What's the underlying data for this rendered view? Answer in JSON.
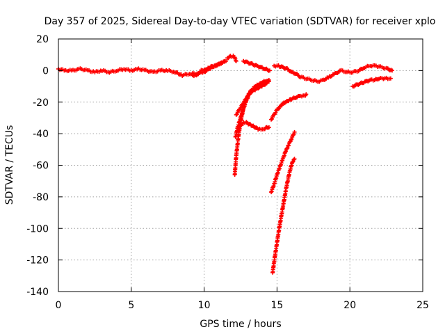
{
  "chart_data": {
    "type": "scatter",
    "title": "Day 357 of 2025, Sidereal Day-to-day VTEC variation (SDTVAR) for receiver xplo",
    "xlabel": "GPS time / hours",
    "ylabel": "SDTVAR / TECUs",
    "xlim": [
      0,
      25
    ],
    "ylim": [
      -140,
      20
    ],
    "xticks": [
      0,
      5,
      10,
      15,
      20,
      25
    ],
    "yticks": [
      -140,
      -120,
      -100,
      -80,
      -60,
      -40,
      -20,
      0,
      20
    ],
    "grid": true,
    "marker": "plus",
    "color": "#ff0000",
    "series": [
      {
        "x": [
          0.0,
          0.5,
          1.0,
          1.5,
          2.0,
          2.5,
          3.0,
          3.5,
          4.0,
          4.5,
          5.0,
          5.5,
          6.0,
          6.5,
          7.0,
          7.5,
          8.0,
          8.5,
          9.0,
          9.5,
          10.0,
          10.5,
          11.0,
          11.5
        ],
        "y": [
          1,
          0,
          0,
          1,
          0,
          -1,
          0,
          -1,
          0,
          1,
          0,
          1,
          0,
          -1,
          0,
          0,
          -1,
          -3,
          -2,
          -2,
          -1,
          2,
          4,
          6
        ]
      },
      {
        "x": [
          9.2,
          9.4,
          9.6,
          9.8,
          10.0,
          10.2,
          10.4,
          10.6,
          10.8,
          11.0,
          11.2,
          11.4
        ],
        "y": [
          -3,
          -3,
          -2,
          0,
          0,
          1,
          2,
          3,
          3,
          4,
          5,
          6
        ]
      },
      {
        "x": [
          11.6,
          11.8,
          12.0,
          12.1,
          12.2
        ],
        "y": [
          8,
          9,
          9,
          8,
          6
        ]
      },
      {
        "x": [
          12.7,
          13.0,
          13.3,
          13.6,
          13.9,
          14.2,
          14.5
        ],
        "y": [
          6,
          5,
          4,
          3,
          2,
          1,
          0
        ]
      },
      {
        "x": [
          14.8,
          15.1,
          15.4,
          15.7,
          16.0,
          16.3,
          16.6,
          17.0,
          17.4,
          17.8,
          18.2,
          18.6,
          19.0,
          19.4,
          19.8,
          20.2,
          20.6,
          21.0,
          21.4,
          21.8,
          22.2,
          22.6,
          22.9
        ],
        "y": [
          3,
          3,
          2,
          1,
          -1,
          -2,
          -4,
          -5,
          -6,
          -7,
          -6,
          -4,
          -2,
          0,
          -1,
          -1,
          0,
          2,
          3,
          3,
          2,
          1,
          0
        ]
      },
      {
        "x": [
          20.2,
          20.5,
          20.8,
          21.1,
          21.4,
          21.7,
          22.0,
          22.3,
          22.6,
          22.8
        ],
        "y": [
          -10,
          -9,
          -8,
          -7,
          -6,
          -6,
          -5,
          -5,
          -5,
          -5
        ]
      },
      {
        "x": [
          12.1,
          12.2,
          12.35,
          12.5,
          12.7,
          12.9,
          13.1,
          13.3,
          13.5,
          13.7,
          13.9,
          14.1,
          14.3,
          14.45
        ],
        "y": [
          -66,
          -54,
          -42,
          -32,
          -24,
          -18,
          -14,
          -12,
          -10,
          -9,
          -8,
          -7,
          -7,
          -6
        ]
      },
      {
        "x": [
          12.15,
          12.3,
          12.5,
          12.7,
          12.9,
          13.1,
          13.3,
          13.5,
          13.7,
          13.9,
          14.1,
          14.3
        ],
        "y": [
          -42,
          -36,
          -30,
          -24,
          -19,
          -15,
          -13,
          -12,
          -11,
          -10,
          -9,
          -8
        ]
      },
      {
        "x": [
          12.2,
          12.4,
          12.6,
          12.8,
          13.0,
          13.2,
          13.4,
          13.6,
          13.8,
          14.0,
          14.2,
          14.45
        ],
        "y": [
          -28,
          -25,
          -22,
          -19,
          -16,
          -14,
          -12,
          -10,
          -9,
          -8,
          -7,
          -7
        ]
      },
      {
        "x": [
          12.3,
          12.5,
          12.7,
          12.9,
          13.1,
          13.3,
          13.5,
          13.7,
          13.9,
          14.1,
          14.3,
          14.45
        ],
        "y": [
          -38,
          -35,
          -33,
          -33,
          -34,
          -35,
          -36,
          -37,
          -37,
          -37,
          -36,
          -36
        ]
      },
      {
        "x": [
          14.6,
          14.8,
          15.0,
          15.2,
          15.4,
          15.6,
          15.8,
          16.0,
          16.3,
          16.6,
          16.9,
          17.0
        ],
        "y": [
          -31,
          -28,
          -25,
          -23,
          -21,
          -20,
          -19,
          -18,
          -17,
          -16,
          -16,
          -15
        ]
      },
      {
        "x": [
          14.6,
          14.8,
          15.0,
          15.2,
          15.4,
          15.6,
          15.8,
          16.0,
          16.2
        ],
        "y": [
          -77,
          -72,
          -66,
          -61,
          -56,
          -51,
          -47,
          -43,
          -39
        ]
      },
      {
        "x": [
          14.7,
          14.85,
          15.0,
          15.15,
          15.3,
          15.45,
          15.6,
          15.75,
          15.9,
          16.05,
          16.2
        ],
        "y": [
          -128,
          -118,
          -109,
          -100,
          -92,
          -84,
          -76,
          -69,
          -63,
          -58,
          -56
        ]
      }
    ]
  }
}
